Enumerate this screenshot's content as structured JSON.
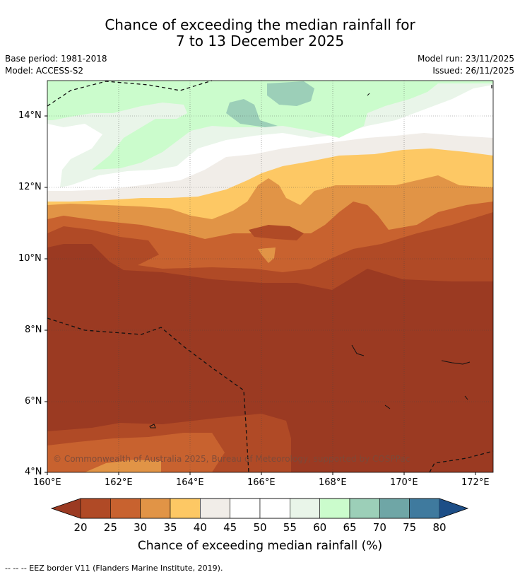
{
  "title_line1": "Chance of exceeding the median rainfall for",
  "title_line2": "7 to 13 December 2025",
  "base_period": "Base period: 1981-2018",
  "model": "Model: ACCESS-S2",
  "model_run": "Model run: 23/11/2025",
  "issued": "Issued: 26/11/2025",
  "copyright": "© Commonwealth of Australia 2025, Bureau of Meteorology, supported by COSPPac",
  "y_ticks": [
    "14°N",
    "12°N",
    "10°N",
    "8°N",
    "6°N",
    "4°N"
  ],
  "x_ticks": [
    "160°E",
    "162°E",
    "164°E",
    "166°E",
    "168°E",
    "170°E",
    "172°E"
  ],
  "colorbar": {
    "title": "Chance of exceeding median rainfall (%)",
    "labels": [
      "20",
      "25",
      "30",
      "35",
      "40",
      "45",
      "50",
      "55",
      "60",
      "65",
      "70",
      "75",
      "80"
    ],
    "colors": [
      "#b04a26",
      "#c8622f",
      "#e19446",
      "#fdc864",
      "#f1ede8",
      "#ffffff",
      "#ffffff",
      "#e9f5e9",
      "#cbfccc",
      "#9ccfb8",
      "#6fa6a6",
      "#3f7a9e"
    ],
    "under_color": "#9b3a22",
    "over_color": "#1d4e87"
  },
  "footnote": "--  --  -- EEZ border V11 (Flanders Marine Institute, 2019)."
}
